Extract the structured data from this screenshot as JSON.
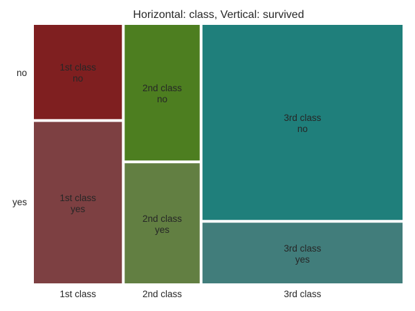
{
  "chart_data": {
    "type": "mosaic",
    "title": "Horizontal: class, Vertical: survived",
    "x_categories": [
      "1st class",
      "2nd class",
      "3rd class"
    ],
    "y_categories": [
      "no",
      "yes"
    ],
    "x_proportions": [
      0.2424,
      0.2066,
      0.551
    ],
    "y_proportions_by_x": [
      {
        "no": 0.37,
        "yes": 0.63
      },
      {
        "no": 0.53,
        "yes": 0.47
      },
      {
        "no": 0.76,
        "yes": 0.24
      }
    ],
    "tiles": [
      {
        "x": "1st class",
        "y": "no",
        "label_line1": "1st class",
        "label_line2": "no",
        "color": "#7f1f20"
      },
      {
        "x": "1st class",
        "y": "yes",
        "label_line1": "1st class",
        "label_line2": "yes",
        "color": "#7d4042"
      },
      {
        "x": "2nd class",
        "y": "no",
        "label_line1": "2nd class",
        "label_line2": "no",
        "color": "#4d7e20"
      },
      {
        "x": "2nd class",
        "y": "yes",
        "label_line1": "2nd class",
        "label_line2": "yes",
        "color": "#627f42"
      },
      {
        "x": "3rd class",
        "y": "no",
        "label_line1": "3rd class",
        "label_line2": "no",
        "color": "#1f7f7b"
      },
      {
        "x": "3rd class",
        "y": "yes",
        "label_line1": "3rd class",
        "label_line2": "yes",
        "color": "#417d7b"
      }
    ],
    "xlabel": "",
    "ylabel": "",
    "grid": false,
    "legend": "none"
  }
}
